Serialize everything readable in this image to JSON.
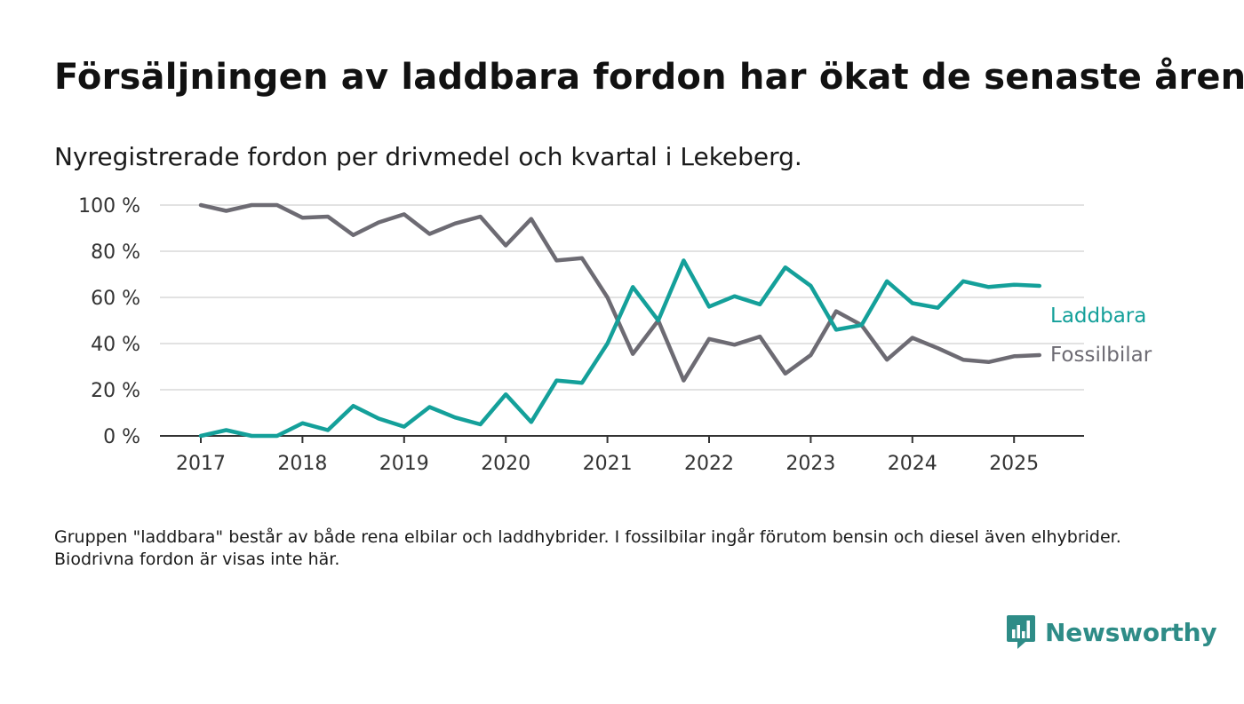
{
  "title": "Försäljningen av laddbara fordon har ökat de senaste åren",
  "subtitle": "Nyregistrerade fordon per drivmedel och kvartal i Lekeberg.",
  "note": "Gruppen \"laddbara\" består av både rena elbilar och laddhybrider. I fossilbilar ingår förutom bensin och diesel även elhybrider. Biodrivna fordon är visas inte här.",
  "brand": {
    "name": "Newsworthy",
    "icon": "newsworthy-logo-icon",
    "color": "#2e8c87"
  },
  "chart_data": {
    "type": "line",
    "title": "Försäljningen av laddbara fordon har ökat de senaste åren",
    "subtitle": "Nyregistrerade fordon per drivmedel och kvartal i Lekeberg.",
    "xlabel": "",
    "ylabel": "",
    "x_start": "2017-01",
    "x_step": "quarter",
    "x_ticks": [
      "2017",
      "2018",
      "2019",
      "2020",
      "2021",
      "2022",
      "2023",
      "2024",
      "2025"
    ],
    "y_ticks": [
      "0 %",
      "20 %",
      "40 %",
      "60 %",
      "80 %",
      "100 %"
    ],
    "ylim": [
      0,
      100
    ],
    "grid": true,
    "legend": "direct labels at line ends",
    "series": [
      {
        "name": "Laddbara",
        "color": "#14a09a",
        "values": [
          0,
          2.5,
          0,
          0,
          5.5,
          2.5,
          13,
          7.5,
          4,
          12.5,
          8,
          5,
          18,
          6,
          24,
          23,
          40,
          64.5,
          50,
          76,
          56,
          60.5,
          57,
          73,
          65,
          46,
          48,
          67,
          57.5,
          55.5,
          67,
          64.5,
          65.5,
          65
        ]
      },
      {
        "name": "Fossilbilar",
        "color": "#6d6b73",
        "values": [
          100,
          97.5,
          100,
          100,
          94.5,
          95,
          87,
          92.5,
          96,
          87.5,
          92,
          95,
          82.5,
          94,
          76,
          77,
          60,
          35.5,
          50,
          24,
          42,
          39.5,
          43,
          27,
          35,
          54,
          48,
          33,
          42.5,
          38,
          33,
          32,
          34.5,
          35
        ]
      }
    ]
  }
}
